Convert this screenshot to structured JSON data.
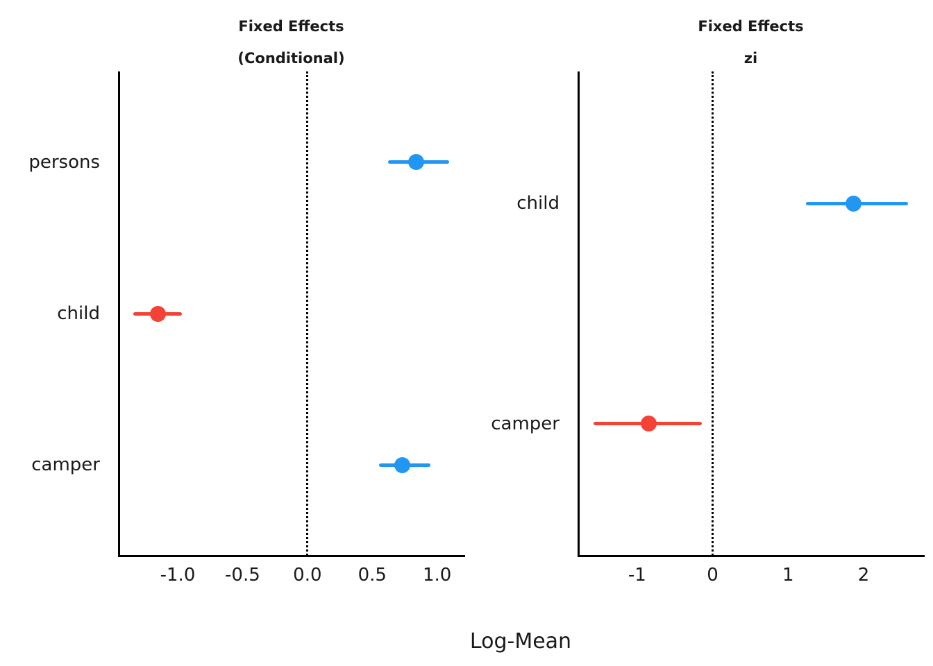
{
  "chart_data": {
    "type": "scatter",
    "subtype": "forest-plot-with-error-bars",
    "xlabel": "Log-Mean",
    "grid": false,
    "legend": null,
    "colors": {
      "positive_effect": "#2196F3",
      "negative_effect": "#F44336",
      "axis": "#000000",
      "text": "#1a1a1a",
      "background": "#ffffff"
    },
    "panels": [
      {
        "title_lines": [
          "Fixed Effects",
          "(Conditional)"
        ],
        "xlim": [
          -1.455,
          1.205
        ],
        "zero_line": 0,
        "xticks": [
          {
            "value": -1.0,
            "label": "-1.0"
          },
          {
            "value": -0.5,
            "label": "-0.5"
          },
          {
            "value": 0.0,
            "label": "0.0"
          },
          {
            "value": 0.5,
            "label": "0.5"
          },
          {
            "value": 1.0,
            "label": "1.0"
          }
        ],
        "rows": [
          {
            "term": "persons",
            "estimate": 0.84,
            "ci_low": 0.62,
            "ci_high": 1.09,
            "color_key": "positive_effect"
          },
          {
            "term": "child",
            "estimate": -1.15,
            "ci_low": -1.34,
            "ci_high": -0.97,
            "color_key": "negative_effect"
          },
          {
            "term": "camper",
            "estimate": 0.73,
            "ci_low": 0.55,
            "ci_high": 0.95,
            "color_key": "positive_effect"
          }
        ]
      },
      {
        "title_lines": [
          "Fixed Effects",
          "zi"
        ],
        "xlim": [
          -1.78,
          2.79
        ],
        "zero_line": 0,
        "xticks": [
          {
            "value": -1,
            "label": "-1"
          },
          {
            "value": 0,
            "label": "0"
          },
          {
            "value": 1,
            "label": "1"
          },
          {
            "value": 2,
            "label": "2"
          }
        ],
        "rows": [
          {
            "term": "child",
            "estimate": 1.87,
            "ci_low": 1.24,
            "ci_high": 2.59,
            "color_key": "positive_effect"
          },
          {
            "term": "camper",
            "estimate": -0.85,
            "ci_low": -1.58,
            "ci_high": -0.14,
            "color_key": "negative_effect"
          }
        ]
      }
    ]
  }
}
